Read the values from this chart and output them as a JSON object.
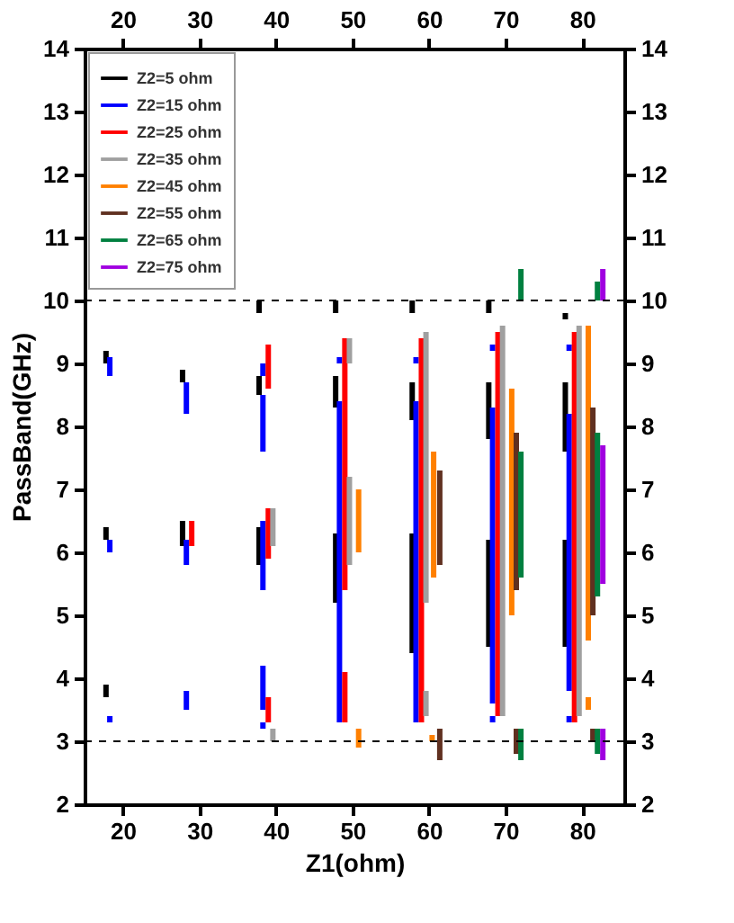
{
  "chart_data": {
    "type": "bar",
    "xlabel": "Z1(ohm)",
    "ylabel": "PassBand(GHz)",
    "xlim": [
      15,
      85.5
    ],
    "xticks": [
      20,
      30,
      40,
      50,
      60,
      70,
      80
    ],
    "x2lim": [
      15,
      85.5
    ],
    "x2ticks": [
      20,
      30,
      40,
      50,
      60,
      70,
      80
    ],
    "ylim": [
      2,
      14
    ],
    "yticks": [
      2,
      3,
      4,
      5,
      6,
      7,
      8,
      9,
      10,
      11,
      12,
      13,
      14
    ],
    "y2lim": [
      2,
      14
    ],
    "y2ticks": [
      2,
      3,
      4,
      5,
      6,
      7,
      8,
      9,
      10,
      11,
      12,
      13,
      14
    ],
    "grid": false,
    "legend": "top left",
    "ref_lines": [
      {
        "axis": "y",
        "value": 3,
        "color": "#000000",
        "line_style": "dashed"
      },
      {
        "axis": "y",
        "value": 10,
        "color": "#000000",
        "line_style": "dashed"
      }
    ],
    "series": [
      {
        "name": "Z2=5 ohm",
        "color": "#000000",
        "x": [
          37.8,
          47.8,
          57.8,
          67.8,
          77.8
        ],
        "base": [
          9.8,
          9.8,
          9.8,
          9.8,
          9.7
        ],
        "values": [
          0.2,
          0.2,
          0.2,
          0.2,
          0.1
        ]
      },
      {
        "color": "#000000",
        "x": [
          17.8,
          27.8,
          37.8,
          47.8,
          57.8,
          67.8,
          77.8
        ],
        "base": [
          9.0,
          8.7,
          8.5,
          8.3,
          8.1,
          7.8,
          7.6
        ],
        "values": [
          0.2,
          0.2,
          0.3,
          0.5,
          0.6,
          0.9,
          1.1
        ]
      },
      {
        "color": "#000000",
        "x": [
          17.8,
          27.8,
          37.8,
          47.8,
          57.8,
          67.8,
          77.8
        ],
        "base": [
          6.2,
          6.1,
          5.8,
          5.2,
          4.4,
          4.5,
          4.5
        ],
        "values": [
          0.2,
          0.4,
          0.6,
          1.1,
          1.9,
          1.7,
          1.7
        ]
      },
      {
        "color": "#000000",
        "x": [
          17.8
        ],
        "base": [
          3.7
        ],
        "values": [
          0.2
        ]
      },
      {
        "name": "Z2=15 ohm",
        "color": "#0000ff",
        "x": [
          18.3,
          28.3,
          38.3,
          48.3,
          58.3,
          68.3,
          78.3
        ],
        "base": [
          8.8,
          8.2,
          8.8,
          9.0,
          9.0,
          9.2,
          9.2
        ],
        "values": [
          0.3,
          0.5,
          0.2,
          0.1,
          0.1,
          0.1,
          0.1
        ]
      },
      {
        "color": "#0000ff",
        "x": [
          18.3,
          28.3,
          38.3,
          48.3,
          58.3,
          68.3,
          78.3
        ],
        "base": [
          6.0,
          5.8,
          7.6,
          3.3,
          3.3,
          3.6,
          3.8
        ],
        "values": [
          0.2,
          0.4,
          0.9,
          5.1,
          5.1,
          4.7,
          4.4
        ]
      },
      {
        "color": "#0000ff",
        "x": [
          18.3,
          28.3,
          38.3,
          68.3,
          78.3
        ],
        "base": [
          3.3,
          3.5,
          5.4,
          3.3,
          3.3
        ],
        "values": [
          0.1,
          0.3,
          1.1,
          0.1,
          0.1
        ]
      },
      {
        "color": "#0000ff",
        "x": [
          38.3
        ],
        "base": [
          3.5
        ],
        "values": [
          0.7
        ]
      },
      {
        "color": "#0000ff",
        "x": [
          38.3
        ],
        "base": [
          3.2
        ],
        "values": [
          0.1
        ]
      },
      {
        "name": "Z2=25 ohm",
        "color": "#ff0000",
        "x": [
          29.0,
          39.0,
          49.0,
          59.0,
          69.0,
          79.0
        ],
        "base": [
          6.1,
          8.6,
          5.4,
          3.3,
          3.4,
          3.3
        ],
        "values": [
          0.4,
          0.7,
          4.0,
          6.1,
          6.1,
          6.2
        ]
      },
      {
        "color": "#ff0000",
        "x": [
          39.0,
          49.0
        ],
        "base": [
          5.9,
          3.3
        ],
        "values": [
          0.8,
          0.8
        ]
      },
      {
        "color": "#ff0000",
        "x": [
          39.0
        ],
        "base": [
          3.3
        ],
        "values": [
          0.4
        ]
      },
      {
        "name": "Z2=35 ohm",
        "color": "#a0a0a0",
        "x": [
          39.6,
          49.6,
          59.6,
          69.6,
          79.6
        ],
        "base": [
          6.1,
          9.0,
          5.2,
          3.4,
          3.4
        ],
        "values": [
          0.6,
          0.4,
          4.3,
          6.2,
          6.2
        ]
      },
      {
        "color": "#a0a0a0",
        "x": [
          39.6,
          49.6,
          59.6
        ],
        "base": [
          3.0,
          5.8,
          3.4
        ],
        "values": [
          0.2,
          1.4,
          0.4
        ]
      },
      {
        "name": "Z2=45 ohm",
        "color": "#ff8000",
        "x": [
          50.8,
          60.6,
          70.8,
          80.8
        ],
        "base": [
          6.0,
          5.6,
          5.0,
          4.6
        ],
        "values": [
          1.0,
          2.0,
          3.6,
          5.0
        ]
      },
      {
        "color": "#ff8000",
        "x": [
          50.8,
          60.4,
          80.8
        ],
        "base": [
          2.9,
          3.0,
          3.5
        ],
        "values": [
          0.3,
          0.1,
          0.2
        ]
      },
      {
        "name": "Z2=55 ohm",
        "color": "#603020",
        "x": [
          61.4,
          71.4,
          81.4
        ],
        "base": [
          5.8,
          5.4,
          5.0
        ],
        "values": [
          1.5,
          2.5,
          3.3
        ]
      },
      {
        "color": "#603020",
        "x": [
          61.4,
          71.4,
          81.4
        ],
        "base": [
          2.7,
          2.8,
          3.0
        ],
        "values": [
          0.5,
          0.4,
          0.2
        ]
      },
      {
        "name": "Z2=65 ohm",
        "color": "#008040",
        "x": [
          72.0,
          82.0
        ],
        "base": [
          10.0,
          10.0
        ],
        "values": [
          0.5,
          0.3
        ]
      },
      {
        "color": "#008040",
        "x": [
          72.0,
          82.0
        ],
        "base": [
          5.6,
          5.3
        ],
        "values": [
          2.0,
          2.6
        ]
      },
      {
        "color": "#008040",
        "x": [
          72.0,
          82.0
        ],
        "base": [
          2.7,
          2.8
        ],
        "values": [
          0.5,
          0.4
        ]
      },
      {
        "name": "Z2=75 ohm",
        "color": "#a000e0",
        "x": [
          82.7
        ],
        "base": [
          10.0
        ],
        "values": [
          0.5
        ]
      },
      {
        "color": "#a000e0",
        "x": [
          82.7
        ],
        "base": [
          5.5
        ],
        "values": [
          2.2
        ]
      },
      {
        "color": "#a000e0",
        "x": [
          82.7
        ],
        "base": [
          2.7
        ],
        "values": [
          0.5
        ]
      }
    ]
  }
}
